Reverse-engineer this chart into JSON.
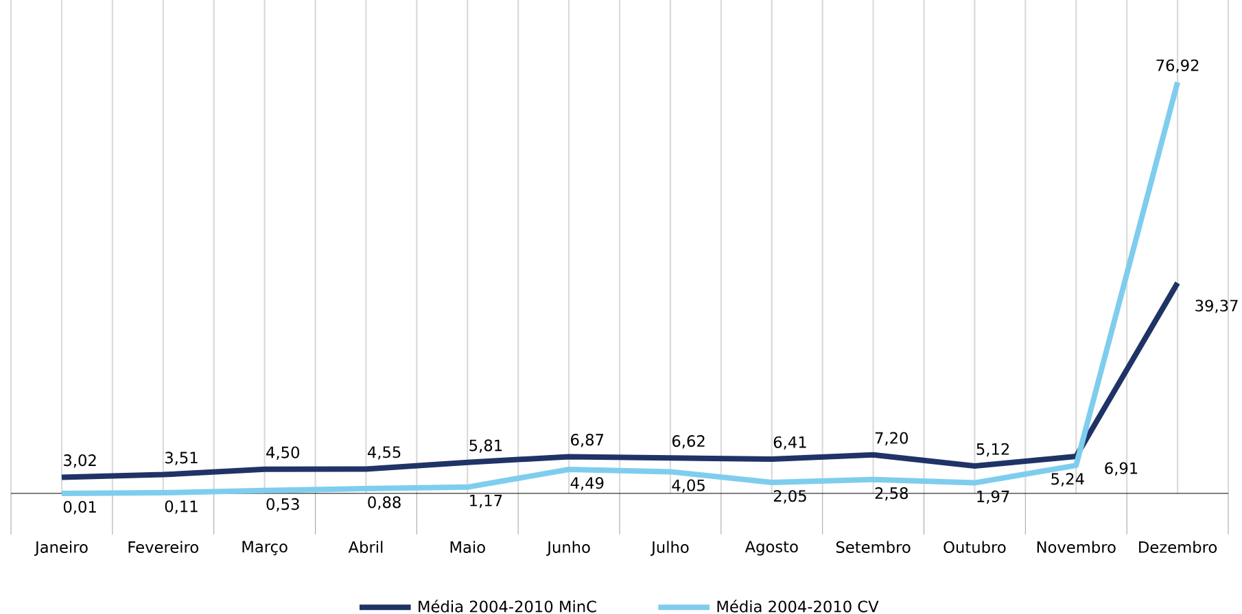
{
  "chart_data": {
    "type": "line",
    "categories": [
      "Janeiro",
      "Fevereiro",
      "Março",
      "Abril",
      "Maio",
      "Junho",
      "Julho",
      "Agosto",
      "Setembro",
      "Outubro",
      "Novembro",
      "Dezembro"
    ],
    "series": [
      {
        "name": "Média 2004-2010 MinC",
        "color": "#1f3366",
        "values": [
          3.02,
          3.51,
          4.5,
          4.55,
          5.81,
          6.87,
          6.62,
          6.41,
          7.2,
          5.12,
          6.91,
          39.37
        ],
        "value_labels": [
          "3,02",
          "3,51",
          "4,50",
          "4,55",
          "5,81",
          "6,87",
          "6,62",
          "6,41",
          "7,20",
          "5,12",
          "6,91",
          "39,37"
        ]
      },
      {
        "name": "Média 2004-2010 CV",
        "color": "#7fcdee",
        "values": [
          0.01,
          0.11,
          0.53,
          0.88,
          1.17,
          4.49,
          4.05,
          2.05,
          2.58,
          1.97,
          5.24,
          76.92
        ],
        "value_labels": [
          "0,01",
          "0,11",
          "0,53",
          "0,88",
          "1,17",
          "4,49",
          "4,05",
          "2,05",
          "2,58",
          "1,97",
          "5,24",
          "76,92"
        ]
      }
    ],
    "grid": "x",
    "legend": "bottom",
    "marker": "none",
    "line_style": "solid"
  }
}
